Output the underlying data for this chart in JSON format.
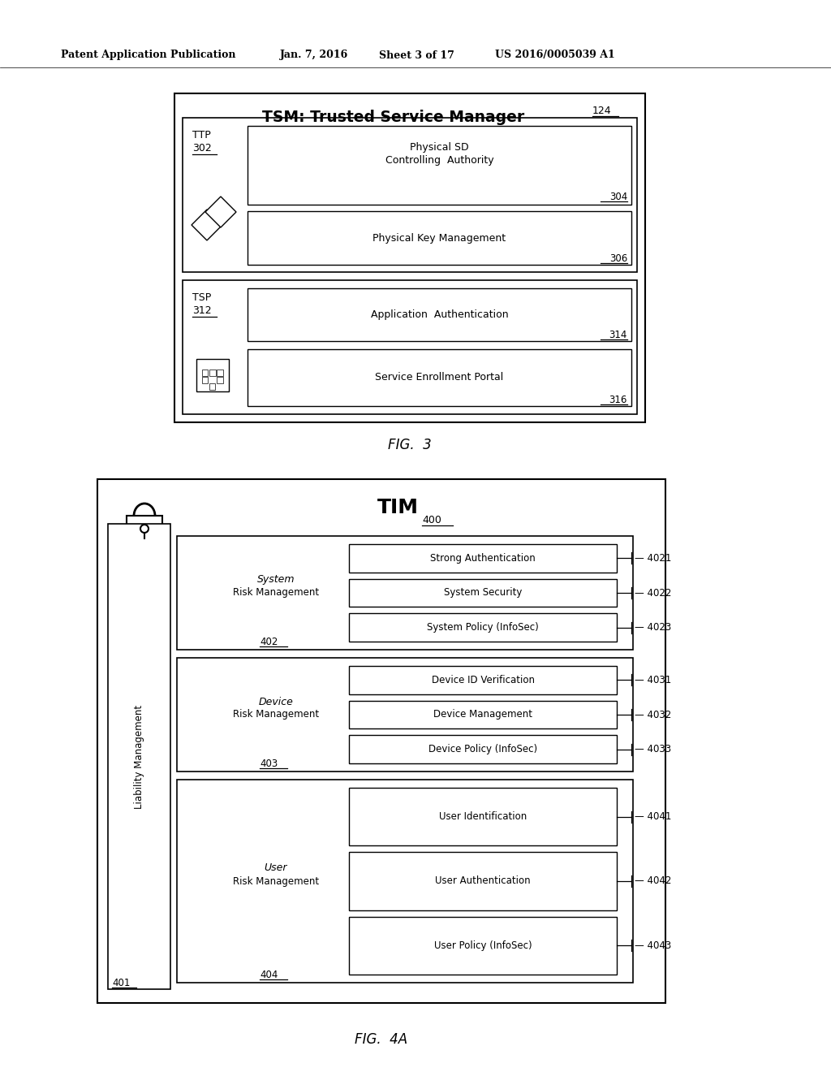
{
  "bg_color": "#ffffff",
  "header_text": "Patent Application Publication",
  "header_date": "Jan. 7, 2016",
  "header_sheet": "Sheet 3 of 17",
  "header_patent": "US 2016/0005039 A1",
  "fig3_caption": "FIG.  3",
  "fig4_caption": "FIG.  4A"
}
